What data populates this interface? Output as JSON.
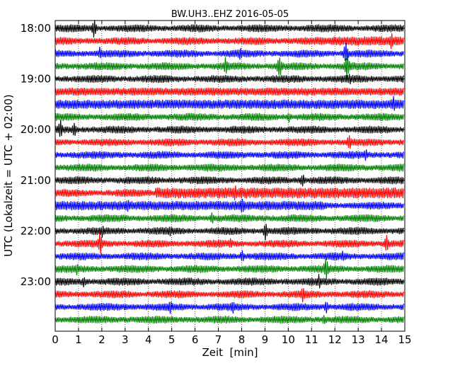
{
  "chart_data": {
    "type": "line",
    "title": "BW.UH3..EHZ 2016-05-05",
    "xlabel": "Zeit  [min]",
    "ylabel": "UTC (Lokalzeit = UTC + 02:00)",
    "xlim": [
      0,
      15
    ],
    "x_ticks": [
      "0",
      "1",
      "2",
      "3",
      "4",
      "5",
      "6",
      "7",
      "8",
      "9",
      "10",
      "11",
      "12",
      "13",
      "14",
      "15"
    ],
    "y_tick_labels": [
      "18:00",
      "19:00",
      "20:00",
      "21:00",
      "22:00",
      "23:00"
    ],
    "trace_interval_min": 15,
    "trace_start_times": [
      "18:00",
      "18:15",
      "18:30",
      "18:45",
      "19:00",
      "19:15",
      "19:30",
      "19:45",
      "20:00",
      "20:15",
      "20:30",
      "20:45",
      "21:00",
      "21:15",
      "21:30",
      "21:45",
      "22:00",
      "22:15",
      "22:30",
      "22:45",
      "23:00",
      "23:15",
      "23:30",
      "23:45"
    ],
    "trace_color_cycle": [
      "#000000",
      "#ff0000",
      "#0000ff",
      "#008000"
    ],
    "vertical_grid": "dotted",
    "events": [
      {
        "trace": 0,
        "minute": 1.65,
        "amp": 10
      },
      {
        "trace": 1,
        "minute": 14.4,
        "amp": 9
      },
      {
        "trace": 2,
        "minute": 1.9,
        "amp": 7
      },
      {
        "trace": 2,
        "minute": 7.9,
        "amp": 8
      },
      {
        "trace": 2,
        "minute": 12.45,
        "amp": 12
      },
      {
        "trace": 3,
        "minute": 7.3,
        "amp": 9
      },
      {
        "trace": 3,
        "minute": 9.6,
        "amp": 13
      },
      {
        "trace": 3,
        "minute": 12.5,
        "amp": 16
      },
      {
        "trace": 4,
        "minute": 12.6,
        "amp": 7
      },
      {
        "trace": 6,
        "minute": 14.5,
        "amp": 9
      },
      {
        "trace": 7,
        "minute": 10.0,
        "amp": 6
      },
      {
        "trace": 8,
        "minute": 0.2,
        "amp": 11
      },
      {
        "trace": 8,
        "minute": 0.8,
        "amp": 9
      },
      {
        "trace": 9,
        "minute": 12.6,
        "amp": 9
      },
      {
        "trace": 10,
        "minute": 13.3,
        "amp": 7
      },
      {
        "trace": 12,
        "minute": 10.6,
        "amp": 8
      },
      {
        "trace": 13,
        "minute": 7.7,
        "amp": 9
      },
      {
        "trace": 14,
        "minute": 3.1,
        "amp": 8
      },
      {
        "trace": 14,
        "minute": 8.0,
        "amp": 10
      },
      {
        "trace": 15,
        "minute": 6.7,
        "amp": 7
      },
      {
        "trace": 16,
        "minute": 2.0,
        "amp": 7
      },
      {
        "trace": 16,
        "minute": 4.9,
        "amp": 7
      },
      {
        "trace": 16,
        "minute": 9.0,
        "amp": 10
      },
      {
        "trace": 17,
        "minute": 1.9,
        "amp": 12
      },
      {
        "trace": 17,
        "minute": 7.5,
        "amp": 7
      },
      {
        "trace": 17,
        "minute": 14.2,
        "amp": 10
      },
      {
        "trace": 18,
        "minute": 8.0,
        "amp": 7
      },
      {
        "trace": 18,
        "minute": 12.3,
        "amp": 7
      },
      {
        "trace": 19,
        "minute": 0.9,
        "amp": 7
      },
      {
        "trace": 19,
        "minute": 11.6,
        "amp": 12
      },
      {
        "trace": 20,
        "minute": 1.2,
        "amp": 7
      },
      {
        "trace": 20,
        "minute": 11.3,
        "amp": 8
      },
      {
        "trace": 21,
        "minute": 10.6,
        "amp": 9
      },
      {
        "trace": 22,
        "minute": 4.9,
        "amp": 8
      },
      {
        "trace": 22,
        "minute": 7.6,
        "amp": 7
      },
      {
        "trace": 22,
        "minute": 11.6,
        "amp": 7
      },
      {
        "trace": 23,
        "minute": 11.5,
        "amp": 6
      }
    ],
    "noisy_segments": [
      {
        "trace": 1,
        "from_min": 11.8,
        "to_min": 15.0,
        "amp": 6
      },
      {
        "trace": 5,
        "from_min": 0.0,
        "to_min": 15.0,
        "amp": 5
      },
      {
        "trace": 6,
        "from_min": 0.0,
        "to_min": 15.0,
        "amp": 6
      },
      {
        "trace": 13,
        "from_min": 4.3,
        "to_min": 15.0,
        "amp": 7
      },
      {
        "trace": 14,
        "from_min": 0.0,
        "to_min": 11.5,
        "amp": 6
      }
    ]
  }
}
